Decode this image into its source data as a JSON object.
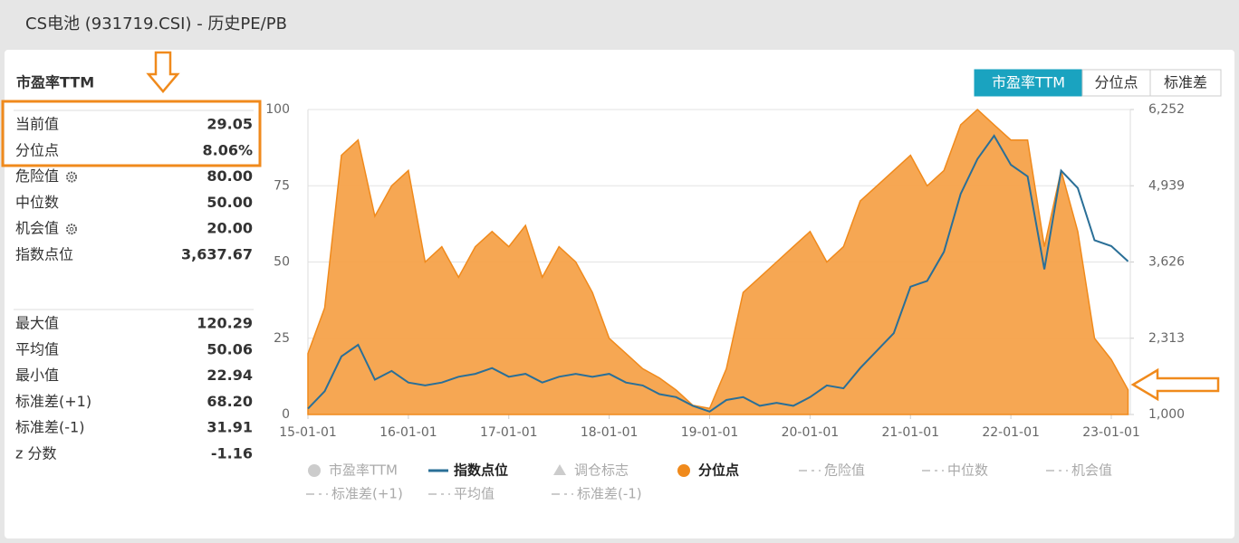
{
  "header": {
    "title": "CS电池 (931719.CSI) - 历史PE/PB"
  },
  "panel": {
    "title": "市盈率TTM",
    "rows": [
      {
        "label": "当前值",
        "value": "29.05"
      },
      {
        "label": "分位点",
        "value": "8.06%"
      },
      {
        "label": "危险值",
        "value": "80.00",
        "gear": true
      },
      {
        "label": "中位数",
        "value": "50.00"
      },
      {
        "label": "机会值",
        "value": "20.00",
        "gear": true
      },
      {
        "label": "指数点位",
        "value": "3,637.67"
      }
    ],
    "stats": [
      {
        "label": "最大值",
        "value": "120.29"
      },
      {
        "label": "平均值",
        "value": "50.06"
      },
      {
        "label": "最小值",
        "value": "22.94"
      },
      {
        "label": "标准差(+1)",
        "value": "68.20"
      },
      {
        "label": "标准差(-1)",
        "value": "31.91"
      },
      {
        "label": "z 分数",
        "value": "-1.16"
      }
    ]
  },
  "buttons": [
    {
      "label": "市盈率TTM",
      "active": true
    },
    {
      "label": "分位点",
      "active": false
    },
    {
      "label": "标准差",
      "active": false
    }
  ],
  "chart_data": {
    "type": "area-line",
    "x": [
      "15-01-01",
      "15-03-01",
      "15-05-01",
      "15-07-01",
      "15-09-01",
      "15-11-01",
      "16-01-01",
      "16-03-01",
      "16-05-01",
      "16-07-01",
      "16-09-01",
      "16-11-01",
      "17-01-01",
      "17-03-01",
      "17-05-01",
      "17-07-01",
      "17-09-01",
      "17-11-01",
      "18-01-01",
      "18-03-01",
      "18-05-01",
      "18-07-01",
      "18-09-01",
      "18-11-01",
      "19-01-01",
      "19-03-01",
      "19-05-01",
      "19-07-01",
      "19-09-01",
      "19-11-01",
      "20-01-01",
      "20-03-01",
      "20-05-01",
      "20-07-01",
      "20-09-01",
      "20-11-01",
      "21-01-01",
      "21-03-01",
      "21-05-01",
      "21-07-01",
      "21-09-01",
      "21-11-01",
      "22-01-01",
      "22-03-01",
      "22-05-01",
      "22-07-01",
      "22-09-01",
      "22-11-01",
      "23-01-01",
      "23-03-01"
    ],
    "series": [
      {
        "color": "#f5a24a",
        "stroke": "#f08a1c",
        "axis": "y",
        "values": [
          20,
          35,
          85,
          90,
          65,
          75,
          80,
          50,
          55,
          45,
          55,
          60,
          55,
          62,
          45,
          55,
          50,
          40,
          25,
          20,
          15,
          12,
          8,
          3,
          2,
          15,
          40,
          45,
          50,
          55,
          60,
          50,
          55,
          70,
          75,
          80,
          85,
          75,
          80,
          95,
          100,
          95,
          90,
          90,
          55,
          80,
          60,
          25,
          18,
          8.06
        ]
      },
      {
        "color": "#2a6f97",
        "axis": "y2",
        "values": [
          1100,
          1400,
          2000,
          2200,
          1600,
          1750,
          1550,
          1500,
          1550,
          1650,
          1700,
          1800,
          1650,
          1700,
          1550,
          1650,
          1700,
          1650,
          1700,
          1550,
          1500,
          1350,
          1300,
          1150,
          1050,
          1250,
          1300,
          1150,
          1200,
          1150,
          1300,
          1500,
          1450,
          1800,
          2100,
          2400,
          3200,
          3300,
          3800,
          4800,
          5400,
          5800,
          5300,
          5100,
          3500,
          5200,
          4900,
          4000,
          3900,
          3637.67
        ]
      }
    ],
    "ylim": [
      0,
      100
    ],
    "yticks": [
      0,
      25,
      50,
      75,
      100
    ],
    "y2lim": [
      1000,
      6252
    ],
    "y2ticks": [
      {
        "value": 1000,
        "label": "1,000"
      },
      {
        "value": 2313,
        "label": "2,313"
      },
      {
        "value": 3626,
        "label": "3,626"
      },
      {
        "value": 4939,
        "label": "4,939"
      },
      {
        "value": 6252,
        "label": "6,252"
      }
    ],
    "xticks": [
      "15-01-01",
      "16-01-01",
      "17-01-01",
      "18-01-01",
      "19-01-01",
      "20-01-01",
      "21-01-01",
      "22-01-01",
      "23-01-01"
    ],
    "grid": true,
    "legend": [
      {
        "name": "市盈率TTM",
        "symbol": "circle",
        "color": "#cccccc",
        "active": false
      },
      {
        "name": "指数点位",
        "symbol": "line",
        "color": "#2a6f97",
        "active": true
      },
      {
        "name": "调仓标志",
        "symbol": "triangle",
        "color": "#cccccc",
        "active": false
      },
      {
        "name": "分位点",
        "symbol": "circle",
        "color": "#f08a1c",
        "active": true
      },
      {
        "name": "危险值",
        "symbol": "dash",
        "color": "#cccccc",
        "active": false
      },
      {
        "name": "中位数",
        "symbol": "dash",
        "color": "#cccccc",
        "active": false
      },
      {
        "name": "机会值",
        "symbol": "dash",
        "color": "#cccccc",
        "active": false
      },
      {
        "name": "标准差(+1)",
        "symbol": "dash",
        "color": "#cccccc",
        "active": false
      },
      {
        "name": "平均值",
        "symbol": "dash",
        "color": "#cccccc",
        "active": false
      },
      {
        "name": "标准差(-1)",
        "symbol": "dash",
        "color": "#cccccc",
        "active": false
      }
    ]
  }
}
